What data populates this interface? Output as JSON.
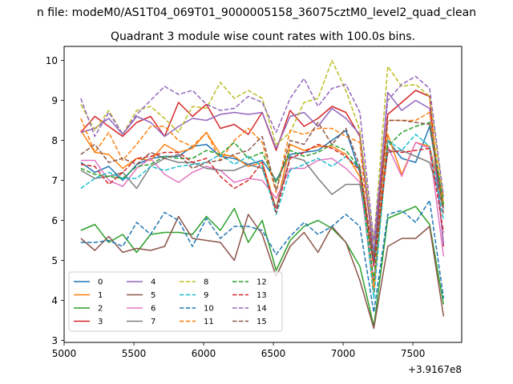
{
  "suptitle": "n file: modeM0/AS1T04_069T01_9000005158_36075cztM0_level2_quad_clean",
  "chart_data": {
    "type": "line",
    "title": "Quadrant 3 module wise count rates with 100.0s bins.",
    "xlabel": "",
    "ylabel": "",
    "x_offset_label": "+3.9167e8",
    "xlim": [
      5000,
      7850
    ],
    "ylim": [
      2.95,
      10.35
    ],
    "xticks": [
      5000,
      5500,
      6000,
      6500,
      7000,
      7500
    ],
    "yticks": [
      3,
      4,
      5,
      6,
      7,
      8,
      9,
      10
    ],
    "grid": false,
    "legend": {
      "placement": "lower-left",
      "columns": 4
    },
    "x": [
      5120,
      5220,
      5320,
      5420,
      5520,
      5620,
      5720,
      5820,
      5920,
      6020,
      6120,
      6220,
      6320,
      6420,
      6520,
      6620,
      6720,
      6820,
      6920,
      7020,
      7120,
      7220,
      7320,
      7420,
      7520,
      7620,
      7720
    ],
    "series": [
      {
        "name": "0",
        "color": "#1f77b4",
        "dash": "solid",
        "values": [
          7.45,
          7.2,
          7.35,
          7.0,
          7.4,
          7.55,
          7.6,
          7.6,
          7.85,
          7.9,
          7.6,
          7.55,
          7.4,
          7.5,
          7.0,
          7.65,
          7.7,
          7.75,
          8.0,
          8.25,
          7.2,
          4.9,
          8.0,
          7.55,
          7.45,
          8.35,
          6.3
        ]
      },
      {
        "name": "1",
        "color": "#ff7f0e",
        "dash": "solid",
        "values": [
          8.25,
          7.7,
          7.65,
          7.3,
          7.55,
          7.5,
          7.9,
          7.7,
          7.8,
          8.2,
          7.65,
          7.6,
          7.35,
          7.45,
          6.3,
          7.9,
          7.75,
          7.85,
          7.85,
          7.65,
          7.1,
          4.2,
          8.15,
          7.15,
          7.95,
          7.85,
          6.35
        ]
      },
      {
        "name": "2",
        "color": "#2ca02c",
        "dash": "solid",
        "values": [
          5.75,
          5.9,
          5.45,
          5.65,
          5.2,
          5.65,
          5.7,
          5.7,
          5.65,
          6.1,
          5.75,
          6.3,
          5.45,
          6.0,
          4.75,
          5.5,
          5.85,
          6.0,
          5.8,
          5.45,
          4.85,
          3.35,
          6.05,
          6.2,
          6.35,
          5.9,
          3.9
        ]
      },
      {
        "name": "3",
        "color": "#d62728",
        "dash": "solid",
        "values": [
          8.2,
          8.6,
          8.35,
          8.1,
          8.45,
          8.6,
          8.1,
          8.95,
          8.6,
          8.9,
          8.3,
          8.4,
          8.15,
          8.7,
          7.75,
          8.75,
          8.35,
          8.55,
          8.85,
          8.7,
          8.1,
          5.1,
          8.65,
          8.95,
          9.25,
          9.1,
          5.35
        ]
      },
      {
        "name": "4",
        "color": "#9467bd",
        "dash": "solid",
        "values": [
          8.2,
          8.3,
          8.55,
          8.15,
          8.6,
          8.45,
          8.1,
          8.35,
          8.55,
          8.5,
          8.65,
          8.7,
          8.65,
          8.7,
          7.8,
          8.6,
          8.7,
          8.35,
          8.8,
          8.55,
          8.15,
          5.2,
          9.2,
          8.75,
          9.0,
          8.8,
          5.4
        ]
      },
      {
        "name": "5",
        "color": "#8c564b",
        "dash": "solid",
        "values": [
          5.55,
          5.25,
          5.6,
          5.2,
          5.3,
          5.25,
          5.35,
          6.1,
          5.55,
          5.5,
          5.45,
          5.0,
          6.15,
          5.65,
          4.6,
          5.35,
          5.7,
          5.2,
          5.85,
          5.45,
          4.5,
          3.3,
          5.35,
          5.55,
          5.55,
          5.85,
          3.6
        ]
      },
      {
        "name": "6",
        "color": "#e377c2",
        "dash": "solid",
        "values": [
          7.5,
          7.5,
          7.0,
          6.85,
          7.3,
          7.55,
          7.15,
          6.95,
          7.2,
          7.35,
          7.25,
          6.95,
          7.05,
          7.0,
          6.55,
          7.3,
          7.3,
          7.5,
          7.55,
          7.3,
          6.95,
          4.5,
          7.85,
          7.1,
          7.95,
          7.8,
          5.1
        ]
      },
      {
        "name": "7",
        "color": "#7f7f7f",
        "dash": "solid",
        "values": [
          7.25,
          7.05,
          7.1,
          7.2,
          6.8,
          7.35,
          7.55,
          7.45,
          7.45,
          7.3,
          7.25,
          7.25,
          7.4,
          7.3,
          6.3,
          7.6,
          7.5,
          7.05,
          6.65,
          6.9,
          6.9,
          5.15,
          7.7,
          7.75,
          7.6,
          7.45,
          6.3
        ]
      },
      {
        "name": "8",
        "color": "#bcbd22",
        "dash": "dashed",
        "values": [
          8.9,
          8.25,
          8.75,
          8.15,
          8.75,
          8.85,
          8.55,
          8.2,
          8.85,
          8.8,
          9.45,
          9.05,
          9.25,
          9.05,
          7.9,
          8.2,
          8.95,
          9.05,
          10.0,
          9.25,
          8.25,
          5.45,
          9.85,
          9.35,
          9.4,
          9.1,
          6.55
        ]
      },
      {
        "name": "9",
        "color": "#17becf",
        "dash": "dashed",
        "values": [
          6.8,
          7.05,
          7.2,
          7.05,
          7.05,
          7.35,
          7.25,
          7.35,
          7.4,
          7.45,
          7.65,
          7.4,
          7.6,
          7.35,
          6.15,
          7.25,
          7.4,
          7.55,
          7.35,
          7.6,
          7.3,
          4.05,
          8.0,
          7.75,
          8.15,
          7.85,
          6.0
        ]
      },
      {
        "name": "10",
        "color": "#1f77b4",
        "dash": "dashed",
        "values": [
          5.45,
          5.45,
          5.5,
          5.35,
          5.95,
          5.65,
          6.2,
          6.0,
          5.35,
          6.05,
          5.55,
          5.85,
          5.85,
          5.75,
          5.15,
          5.6,
          5.95,
          5.65,
          5.85,
          6.15,
          5.85,
          3.7,
          6.15,
          6.25,
          5.95,
          6.5,
          4.05
        ]
      },
      {
        "name": "11",
        "color": "#ff7f0e",
        "dash": "dashed",
        "values": [
          8.55,
          7.7,
          8.2,
          7.5,
          7.9,
          8.35,
          8.35,
          8.0,
          7.85,
          8.2,
          7.5,
          8.0,
          8.3,
          7.95,
          6.7,
          8.25,
          8.15,
          8.3,
          8.3,
          8.1,
          7.95,
          4.35,
          8.5,
          8.5,
          8.5,
          8.7,
          6.4
        ]
      },
      {
        "name": "12",
        "color": "#2ca02c",
        "dash": "dashed",
        "values": [
          7.3,
          7.15,
          7.1,
          7.05,
          7.35,
          7.4,
          7.6,
          7.55,
          7.55,
          7.75,
          7.65,
          7.95,
          7.55,
          7.7,
          6.95,
          7.75,
          7.6,
          7.7,
          7.9,
          7.75,
          7.3,
          4.5,
          7.85,
          8.2,
          8.35,
          8.45,
          6.4
        ]
      },
      {
        "name": "13",
        "color": "#d62728",
        "dash": "dashed",
        "values": [
          7.4,
          7.35,
          6.9,
          7.2,
          7.55,
          7.6,
          7.7,
          7.7,
          7.45,
          7.55,
          7.1,
          6.8,
          7.0,
          7.45,
          6.2,
          7.55,
          7.7,
          7.9,
          7.8,
          7.6,
          7.25,
          4.85,
          7.75,
          7.7,
          7.75,
          7.8,
          5.7
        ]
      },
      {
        "name": "14",
        "color": "#9467bd",
        "dash": "dashed",
        "values": [
          9.05,
          8.1,
          8.7,
          8.15,
          8.65,
          9.0,
          9.35,
          9.15,
          9.25,
          8.9,
          8.75,
          8.8,
          9.1,
          8.95,
          8.2,
          9.05,
          9.55,
          8.85,
          9.3,
          9.4,
          8.7,
          5.5,
          9.0,
          9.4,
          9.6,
          9.3,
          6.6
        ]
      },
      {
        "name": "15",
        "color": "#8c564b",
        "dash": "dashed",
        "values": [
          7.65,
          7.9,
          7.45,
          7.55,
          7.4,
          7.7,
          7.55,
          7.65,
          7.3,
          7.45,
          7.5,
          7.65,
          7.75,
          8.1,
          6.75,
          8.0,
          7.9,
          8.45,
          7.9,
          8.3,
          7.35,
          5.0,
          8.5,
          8.5,
          8.45,
          8.4,
          6.15
        ]
      }
    ]
  }
}
